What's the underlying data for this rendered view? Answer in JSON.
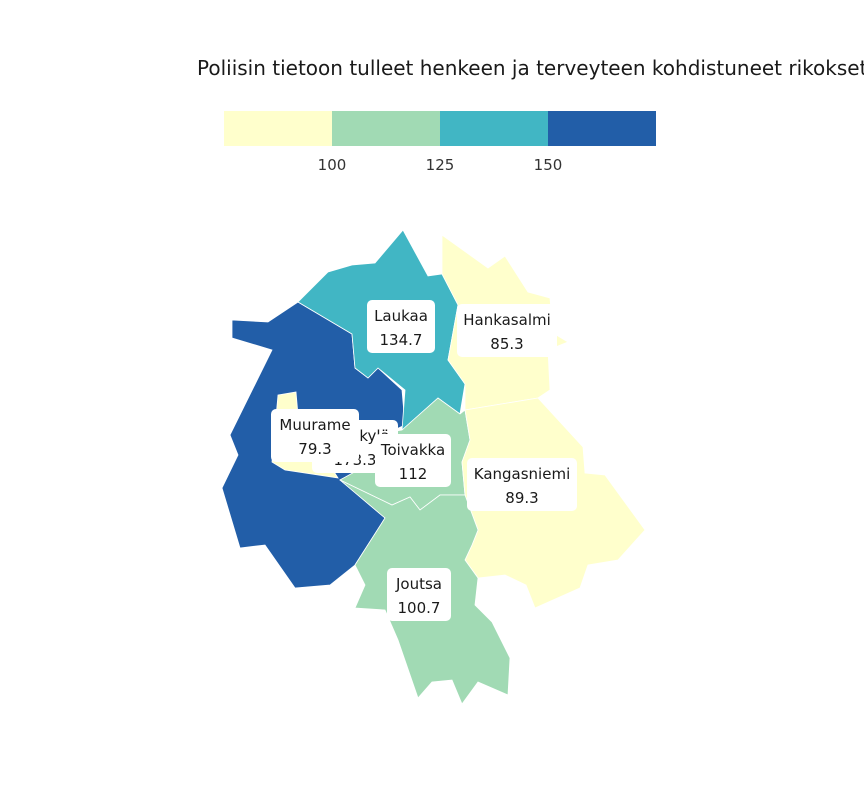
{
  "title": "Poliisin tietoon tulleet henkeen ja terveyteen kohdistuneet rikokset",
  "legend": {
    "breaks": [
      "100",
      "125",
      "150"
    ],
    "colors": [
      "#ffffcc",
      "#a1dab4",
      "#41b6c4",
      "#225ea8"
    ]
  },
  "regions": [
    {
      "name": "Laukaa",
      "value": "134.7",
      "color": "#41b6c4"
    },
    {
      "name": "Hankasalmi",
      "value": "85.3",
      "color": "#ffffcc"
    },
    {
      "name": "Muurame",
      "value": "79.3",
      "color": "#ffffcc"
    },
    {
      "name": "Jyväskylä",
      "value": "173.3",
      "color": "#225ea8"
    },
    {
      "name": "Toivakka",
      "value": "112",
      "color": "#a1dab4"
    },
    {
      "name": "Kangasniemi",
      "value": "89.3",
      "color": "#ffffcc"
    },
    {
      "name": "Joutsa",
      "value": "100.7",
      "color": "#a1dab4"
    }
  ]
}
